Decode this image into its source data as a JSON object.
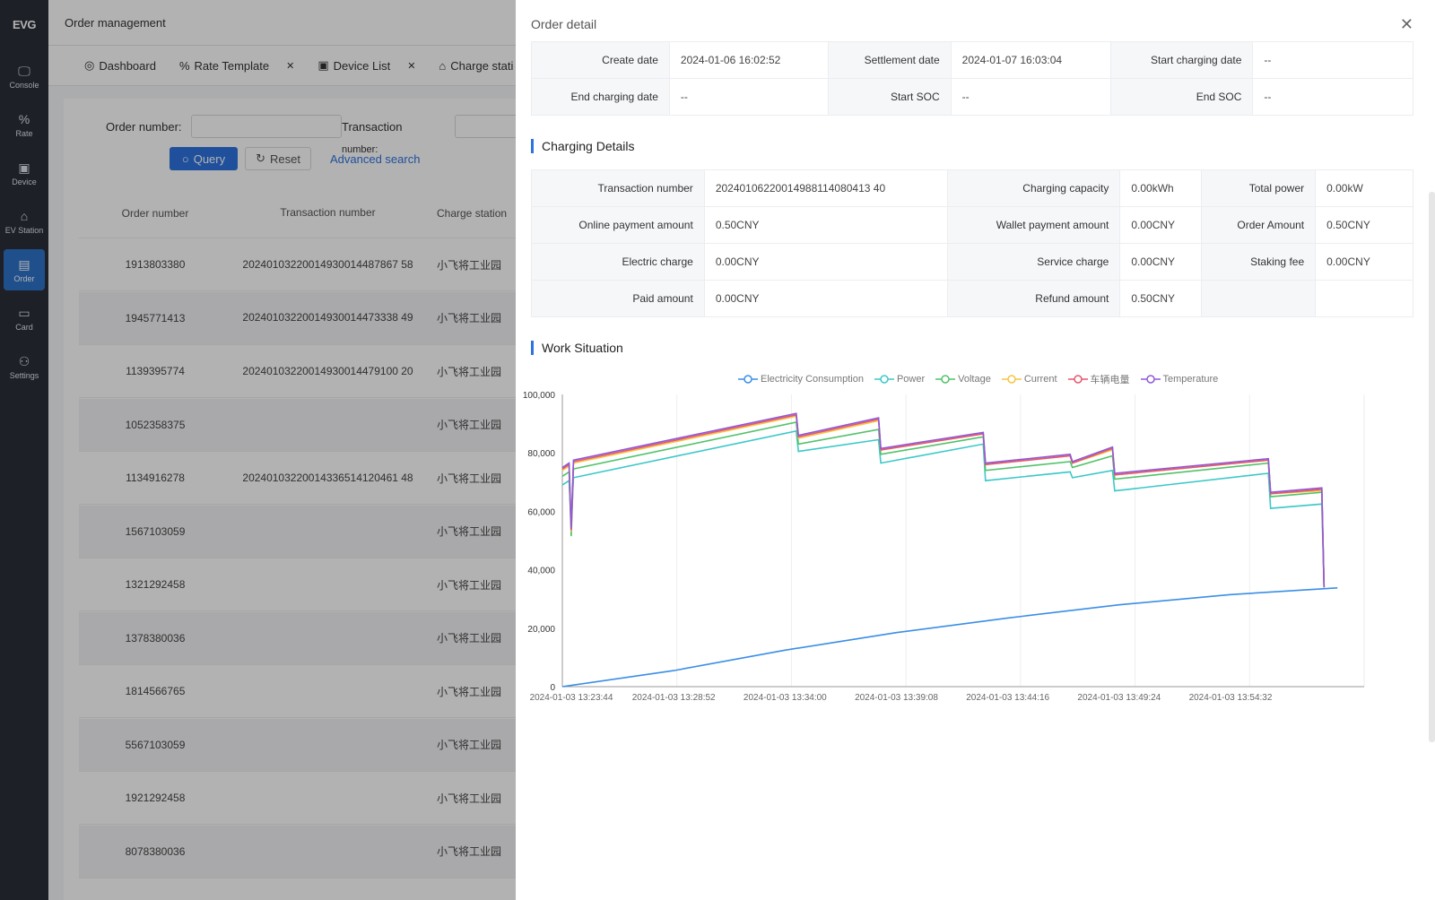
{
  "sidebar": {
    "logo": "EVG",
    "items": [
      {
        "icon": "monitor-icon",
        "glyph": "🖵",
        "label": "Console",
        "active": false
      },
      {
        "icon": "percent-icon",
        "glyph": "%",
        "label": "Rate",
        "active": false
      },
      {
        "icon": "device-icon",
        "glyph": "▣",
        "label": "Device",
        "active": false
      },
      {
        "icon": "ev-station-icon",
        "glyph": "⌂",
        "label": "EV Station",
        "active": false
      },
      {
        "icon": "order-icon",
        "glyph": "▤",
        "label": "Order",
        "active": true
      },
      {
        "icon": "card-icon",
        "glyph": "▭",
        "label": "Card",
        "active": false
      },
      {
        "icon": "settings-icon",
        "glyph": "⚇",
        "label": "Settings",
        "active": false
      }
    ]
  },
  "header": {
    "title": "Order management"
  },
  "tabs": [
    {
      "label": "Dashboard",
      "closable": false
    },
    {
      "label": "Rate Template",
      "closable": true
    },
    {
      "label": "Device List",
      "closable": true
    },
    {
      "label": "Charge stati",
      "closable": false
    }
  ],
  "filters": {
    "order_number_label": "Order number:",
    "transaction_label": "Transaction",
    "transaction_label2": "number:",
    "query": "Query",
    "reset": "Reset",
    "advanced": "Advanced search"
  },
  "table": {
    "columns": [
      "Order number",
      "Transaction number",
      "Charge station"
    ],
    "rows": [
      {
        "order": "1913803380",
        "txn": "20240103220014930014487867 58",
        "station": "小飞将工业园"
      },
      {
        "order": "1945771413",
        "txn": "20240103220014930014473338 49",
        "station": "小飞将工业园"
      },
      {
        "order": "1139395774",
        "txn": "20240103220014930014479100 20",
        "station": "小飞将工业园"
      },
      {
        "order": "1052358375",
        "txn": "",
        "station": "小飞将工业园"
      },
      {
        "order": "1134916278",
        "txn": "20240103220014336514120461 48",
        "station": "小飞将工业园"
      },
      {
        "order": "1567103059",
        "txn": "",
        "station": "小飞将工业园"
      },
      {
        "order": "1321292458",
        "txn": "",
        "station": "小飞将工业园"
      },
      {
        "order": "1378380036",
        "txn": "",
        "station": "小飞将工业园"
      },
      {
        "order": "1814566765",
        "txn": "",
        "station": "小飞将工业园"
      },
      {
        "order": "5567103059",
        "txn": "",
        "station": "小飞将工业园"
      },
      {
        "order": "1921292458",
        "txn": "",
        "station": "小飞将工业园"
      },
      {
        "order": "8078380036",
        "txn": "",
        "station": "小飞将工业园"
      }
    ]
  },
  "drawer": {
    "title": "Order detail",
    "basic": [
      {
        "k1": "Create date",
        "v1": "2024-01-06 16:02:52",
        "k2": "Settlement date",
        "v2": "2024-01-07 16:03:04",
        "k3": "Start charging date",
        "v3": "--"
      },
      {
        "k1": "End charging date",
        "v1": "--",
        "k2": "Start SOC",
        "v2": "--",
        "k3": "End SOC",
        "v3": "--"
      }
    ],
    "charging_title": "Charging Details",
    "charging": [
      {
        "k1": "Transaction number",
        "v1": "20240106220014988114080413 40",
        "k2": "Charging capacity",
        "v2": "0.00kWh",
        "k3": "Total power",
        "v3": "0.00kW"
      },
      {
        "k1": "Online payment amount",
        "v1": "0.50CNY",
        "k2": "Wallet payment amount",
        "v2": "0.00CNY",
        "k3": "Order Amount",
        "v3": "0.50CNY"
      },
      {
        "k1": "Electric charge",
        "v1": "0.00CNY",
        "k2": "Service charge",
        "v2": "0.00CNY",
        "k3": "Staking fee",
        "v3": "0.00CNY"
      },
      {
        "k1": "Paid amount",
        "v1": "0.00CNY",
        "k2": "Refund amount",
        "v2": "0.50CNY",
        "k3": "",
        "v3": ""
      }
    ],
    "work_title": "Work Situation"
  },
  "chart_data": {
    "type": "line",
    "title": "",
    "xlabel": "",
    "ylabel": "",
    "ylim": [
      0,
      100000
    ],
    "yticks": [
      "0",
      "20,000",
      "40,000",
      "60,000",
      "80,000",
      "100,000"
    ],
    "x_tick_labels": [
      "2024-01-03 13:23:44",
      "2024-01-03 13:28:52",
      "2024-01-03 13:34:00",
      "2024-01-03 13:39:08",
      "2024-01-03 13:44:16",
      "2024-01-03 13:49:24",
      "2024-01-03 13:54:32"
    ],
    "x_index_range": [
      0,
      36
    ],
    "x_tick_indices": [
      0,
      5,
      10,
      15,
      20,
      25,
      30
    ],
    "grid": "vertical",
    "legend_position": "top-center",
    "series": [
      {
        "name": "Electricity Consumption",
        "color": "#3a8ee6",
        "points": [
          [
            0,
            0
          ],
          [
            5,
            5500
          ],
          [
            10,
            12500
          ],
          [
            15,
            18500
          ],
          [
            20,
            23500
          ],
          [
            25,
            28000
          ],
          [
            30,
            31500
          ],
          [
            34.8,
            33800
          ]
        ]
      },
      {
        "name": "Power",
        "color": "#3cc8c8",
        "points": [
          [
            0,
            69000
          ],
          [
            0.3,
            70500
          ],
          [
            0.4,
            55000
          ],
          [
            0.5,
            71500
          ],
          [
            10.5,
            87500
          ],
          [
            10.6,
            80500
          ],
          [
            14.2,
            84500
          ],
          [
            14.3,
            76500
          ],
          [
            18.9,
            83000
          ],
          [
            19.0,
            70500
          ],
          [
            22.8,
            73500
          ],
          [
            22.9,
            71500
          ],
          [
            24.7,
            74000
          ],
          [
            24.8,
            67000
          ],
          [
            31.7,
            73000
          ],
          [
            31.8,
            61000
          ],
          [
            34.1,
            62500
          ],
          [
            34.2,
            34000
          ]
        ]
      },
      {
        "name": "Voltage",
        "color": "#52c26a",
        "points": [
          [
            0,
            72000
          ],
          [
            0.3,
            73500
          ],
          [
            0.4,
            51500
          ],
          [
            0.5,
            74500
          ],
          [
            10.5,
            90500
          ],
          [
            10.6,
            83000
          ],
          [
            14.2,
            88000
          ],
          [
            14.3,
            79500
          ],
          [
            18.9,
            85500
          ],
          [
            19.0,
            74000
          ],
          [
            22.8,
            77000
          ],
          [
            22.9,
            75000
          ],
          [
            24.7,
            79000
          ],
          [
            24.8,
            71000
          ],
          [
            31.7,
            76500
          ],
          [
            31.8,
            65000
          ],
          [
            34.1,
            66500
          ],
          [
            34.2,
            34000
          ]
        ]
      },
      {
        "name": "Current",
        "color": "#f5c542",
        "points": [
          [
            0,
            74000
          ],
          [
            0.3,
            75500
          ],
          [
            0.4,
            53000
          ],
          [
            0.5,
            76500
          ],
          [
            10.5,
            92500
          ],
          [
            10.6,
            85000
          ],
          [
            14.2,
            91000
          ],
          [
            14.3,
            81000
          ],
          [
            18.9,
            86500
          ],
          [
            19.0,
            76000
          ],
          [
            22.8,
            79000
          ],
          [
            22.9,
            76500
          ],
          [
            24.7,
            81000
          ],
          [
            24.8,
            72500
          ],
          [
            31.7,
            77500
          ],
          [
            31.8,
            66000
          ],
          [
            34.1,
            67000
          ],
          [
            34.2,
            34000
          ]
        ]
      },
      {
        "name": "车辆电量",
        "color": "#e5566d",
        "points": [
          [
            0,
            74500
          ],
          [
            0.3,
            76000
          ],
          [
            0.4,
            53500
          ],
          [
            0.5,
            77000
          ],
          [
            10.5,
            93000
          ],
          [
            10.6,
            85500
          ],
          [
            14.2,
            91500
          ],
          [
            14.3,
            81000
          ],
          [
            18.9,
            86500
          ],
          [
            19.0,
            76000
          ],
          [
            22.8,
            79000
          ],
          [
            22.9,
            76500
          ],
          [
            24.7,
            81500
          ],
          [
            24.8,
            72500
          ],
          [
            31.7,
            77500
          ],
          [
            31.8,
            66000
          ],
          [
            34.1,
            67500
          ],
          [
            34.2,
            34000
          ]
        ]
      },
      {
        "name": "Temperature",
        "color": "#8e5ad6",
        "points": [
          [
            0,
            75000
          ],
          [
            0.3,
            76500
          ],
          [
            0.4,
            54000
          ],
          [
            0.5,
            77500
          ],
          [
            10.5,
            93500
          ],
          [
            10.6,
            86000
          ],
          [
            14.2,
            92000
          ],
          [
            14.3,
            81500
          ],
          [
            18.9,
            87000
          ],
          [
            19.0,
            76500
          ],
          [
            22.8,
            79500
          ],
          [
            22.9,
            77000
          ],
          [
            24.7,
            82000
          ],
          [
            24.8,
            73000
          ],
          [
            31.7,
            78000
          ],
          [
            31.8,
            66500
          ],
          [
            34.1,
            68000
          ],
          [
            34.2,
            34000
          ]
        ]
      }
    ]
  }
}
